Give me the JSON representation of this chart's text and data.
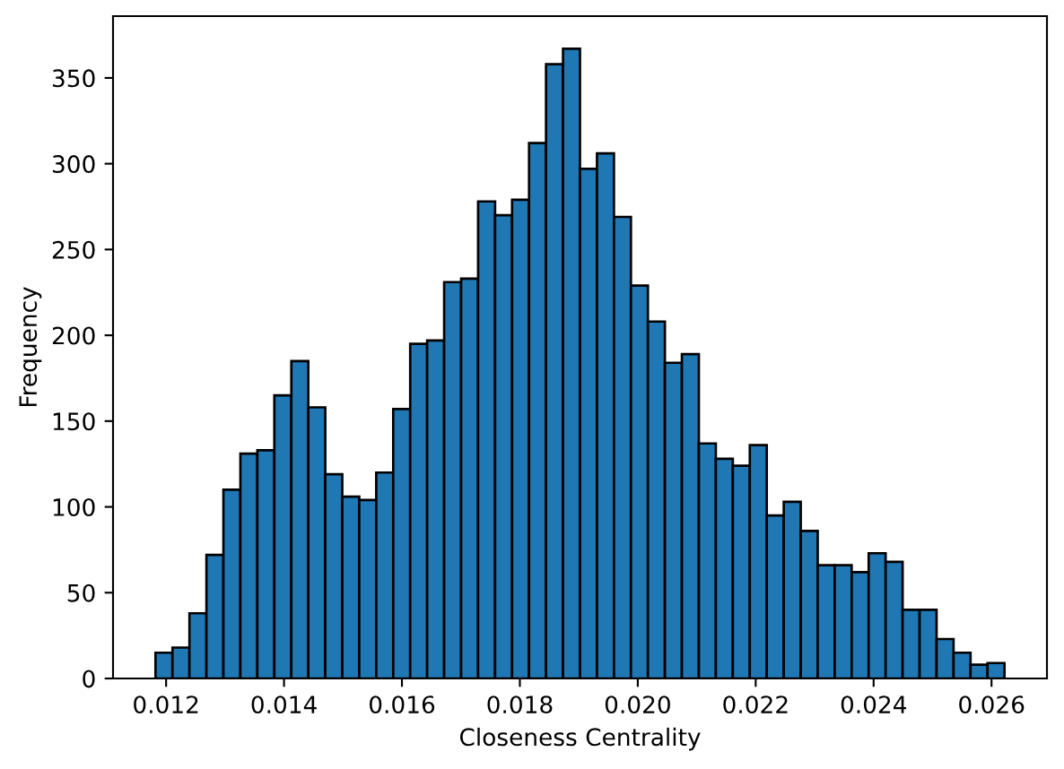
{
  "chart_data": {
    "type": "histogram",
    "xlabel": "Closeness Centrality",
    "ylabel": "Frequency",
    "color": "#1f77b4",
    "bins": [
      0.01182,
      0.012108,
      0.012396,
      0.012684,
      0.012972,
      0.01326,
      0.013548,
      0.013836,
      0.014124,
      0.014412,
      0.0147,
      0.014988,
      0.015276,
      0.015564,
      0.015852,
      0.01614,
      0.016428,
      0.016716,
      0.017004,
      0.017292,
      0.01758,
      0.017868,
      0.018156,
      0.018444,
      0.018732,
      0.01902,
      0.019308,
      0.019596,
      0.019884,
      0.020172,
      0.02046,
      0.020748,
      0.021036,
      0.021324,
      0.021612,
      0.0219,
      0.022188,
      0.022476,
      0.022764,
      0.023052,
      0.02334,
      0.023628,
      0.023916,
      0.024204,
      0.024492,
      0.02478,
      0.025068,
      0.025356,
      0.025644,
      0.025932,
      0.02622
    ],
    "values": [
      15,
      18,
      38,
      72,
      110,
      131,
      133,
      165,
      185,
      158,
      119,
      106,
      104,
      120,
      157,
      195,
      197,
      231,
      233,
      278,
      270,
      279,
      312,
      358,
      367,
      297,
      306,
      269,
      229,
      208,
      184,
      189,
      137,
      128,
      124,
      136,
      95,
      103,
      86,
      66,
      66,
      62,
      73,
      68,
      40,
      40,
      23,
      15,
      8,
      9
    ],
    "xlim": [
      0.0111,
      0.02694
    ],
    "ylim": [
      0,
      386
    ],
    "xticks": [
      0.012,
      0.014,
      0.016,
      0.018,
      {
        "value": 0.02,
        "label": "0.020"
      },
      0.022,
      0.024,
      0.026
    ],
    "yticks": [
      0,
      50,
      100,
      150,
      200,
      250,
      300,
      350
    ]
  }
}
